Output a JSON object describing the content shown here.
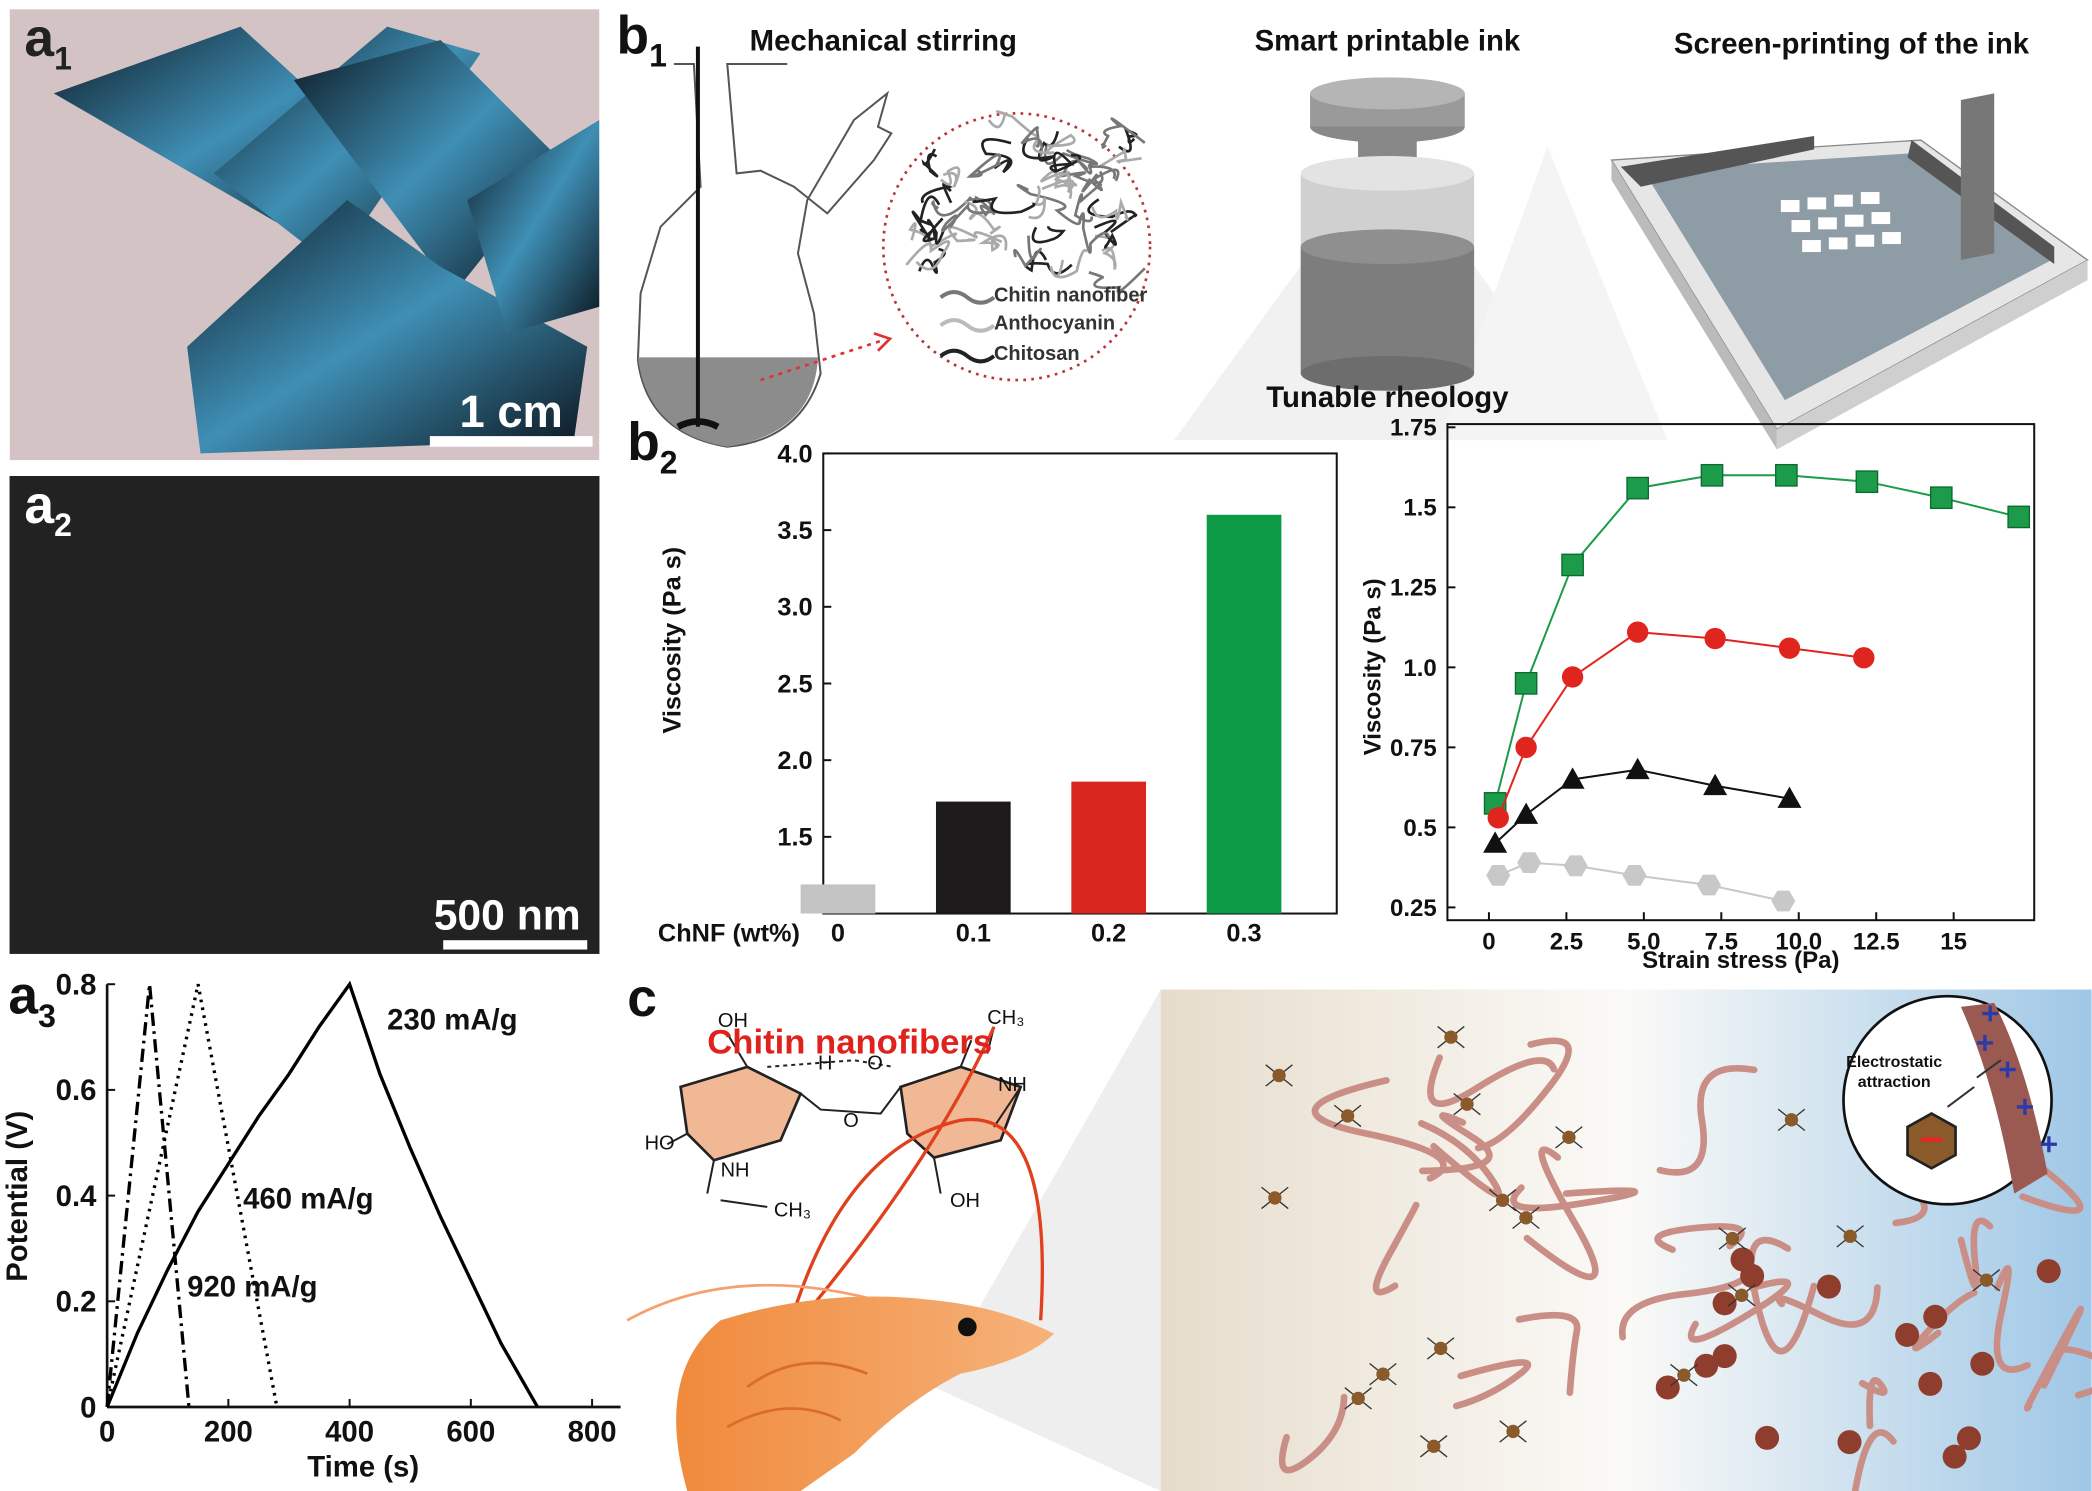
{
  "panel_labels": [
    {
      "letter": "a",
      "sub": "1"
    },
    {
      "letter": "a",
      "sub": "2"
    },
    {
      "letter": "a",
      "sub": "3"
    },
    {
      "letter": "b",
      "sub": "1"
    },
    {
      "letter": "b",
      "sub": "2"
    },
    {
      "letter": "c"
    }
  ],
  "photos": {
    "a1_scale": "1 cm",
    "a2_scale": "500 nm"
  },
  "b1": {
    "steps": [
      "Mechanical stirring",
      "Smart printable ink",
      "Screen-printing of the ink"
    ],
    "caption": "Tunable rheology",
    "legend": [
      "Chitin nanofiber",
      "Anthocyanin",
      "Chitosan"
    ]
  },
  "c": {
    "title": "Chitin nanofibers",
    "inset": [
      "Electrostatic",
      "attraction"
    ],
    "molecule": [
      "OH",
      "H",
      "O",
      "CH₃",
      "NH",
      "HO",
      "O",
      "NH",
      "CH₃",
      "OH"
    ]
  },
  "chart_data": [
    {
      "type": "line",
      "xlabel": "Time (s)",
      "ylabel": "Potential (V)",
      "xlim": [
        0,
        847
      ],
      "ylim": [
        0,
        0.8
      ],
      "xticks": [
        0,
        200,
        400,
        600,
        800
      ],
      "yticks": [
        0,
        0.2,
        0.4,
        0.6,
        0.8
      ],
      "series": [
        {
          "name": "230 mA/g",
          "color": "#000000",
          "dash": "solid",
          "x": [
            0,
            50,
            100,
            150,
            200,
            250,
            300,
            350,
            400,
            450,
            500,
            550,
            600,
            650,
            710
          ],
          "values": [
            0,
            0.14,
            0.26,
            0.37,
            0.46,
            0.55,
            0.63,
            0.72,
            0.8,
            0.63,
            0.49,
            0.36,
            0.24,
            0.12,
            0
          ]
        },
        {
          "name": "460 mA/g",
          "color": "#000000",
          "dash": "dotted",
          "x": [
            0,
            150,
            280
          ],
          "values": [
            0,
            0.8,
            0
          ]
        },
        {
          "name": "920 mA/g",
          "color": "#000000",
          "dash": "dashdot",
          "x": [
            0,
            70,
            135
          ],
          "values": [
            0,
            0.8,
            0
          ]
        }
      ]
    },
    {
      "type": "bar",
      "xlabel": "ChNF (wt%)",
      "ylabel": "Viscosity (Pa s)",
      "categories": [
        "0",
        "0.1",
        "0.2",
        "0.3"
      ],
      "values": [
        1.19,
        1.73,
        1.86,
        3.6
      ],
      "colors": [
        "#c3c3c3",
        "#1c1a1a",
        "#d8251d",
        "#0c9a47"
      ],
      "ylim": [
        1.0,
        4.0
      ],
      "yticks": [
        1.5,
        {
          "value": 2,
          "label": "2.0"
        },
        2.5,
        {
          "value": 3,
          "label": "3.0"
        },
        3.5,
        {
          "value": 4,
          "label": "4.0"
        }
      ]
    },
    {
      "type": "line",
      "xlabel": "Strain stress (Pa)",
      "ylabel": "Viscosity (Pa s)",
      "xlim": [
        -1.34,
        17.6
      ],
      "ylim": [
        0.21,
        1.76
      ],
      "xticks": [
        0,
        2.5,
        {
          "value": 5,
          "label": "5.0"
        },
        7.5,
        {
          "value": 10,
          "label": "10.0"
        },
        12.5,
        15
      ],
      "yticks": [
        0.25,
        0.5,
        0.75,
        {
          "value": 1,
          "label": "1.0"
        },
        1.25,
        1.5,
        1.75
      ],
      "series": [
        {
          "color": "#1c9b4b",
          "marker": "square",
          "x": [
            0.2,
            1.2,
            2.7,
            4.8,
            7.2,
            9.6,
            12.2,
            14.6,
            17.1
          ],
          "values": [
            0.575,
            0.95,
            1.32,
            1.56,
            1.6,
            1.6,
            1.58,
            1.53,
            1.47
          ]
        },
        {
          "color": "#e0241e",
          "marker": "circle",
          "x": [
            0.3,
            1.2,
            2.7,
            4.8,
            7.3,
            9.7,
            12.1
          ],
          "values": [
            0.53,
            0.75,
            0.97,
            1.11,
            1.09,
            1.06,
            1.03
          ]
        },
        {
          "color": "#111111",
          "marker": "triangle",
          "x": [
            0.2,
            1.2,
            2.7,
            4.8,
            7.3,
            9.7
          ],
          "values": [
            0.45,
            0.54,
            0.65,
            0.68,
            0.63,
            0.59
          ]
        },
        {
          "color": "#c8c8c8",
          "marker": "hexagon",
          "x": [
            0.3,
            1.3,
            2.8,
            4.7,
            7.1,
            9.5
          ],
          "values": [
            0.35,
            0.39,
            0.38,
            0.35,
            0.32,
            0.27
          ]
        }
      ]
    }
  ]
}
